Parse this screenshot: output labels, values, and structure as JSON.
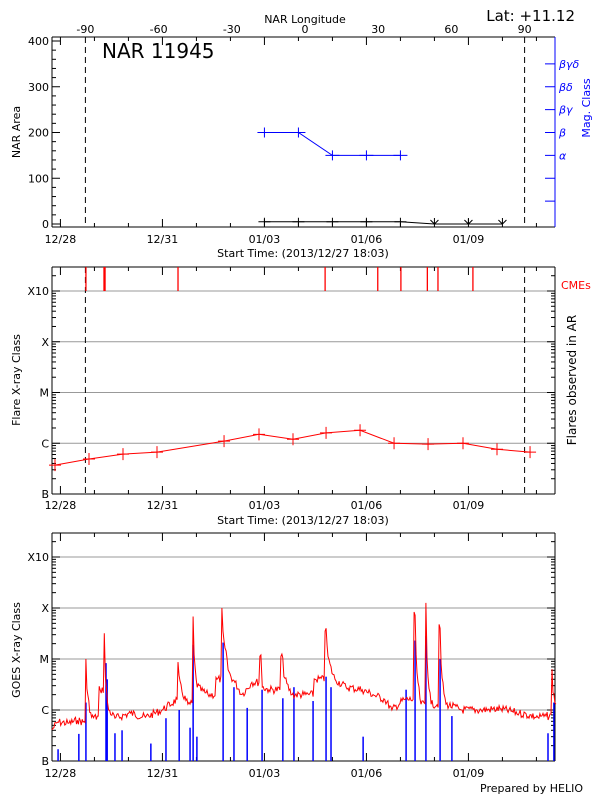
{
  "chart_data": [
    {
      "type": "line",
      "title": "NAR 11945",
      "annotation": "Lat: +11.12",
      "top_axis_label": "NAR Longitude",
      "top_axis_ticks": [
        "-90",
        "-60",
        "-30",
        "0",
        "30",
        "60",
        "90"
      ],
      "top_axis_values": [
        -90,
        -60,
        -30,
        0,
        30,
        60,
        90
      ],
      "xlabel": "Start Time: (2013/12/27 18:03)",
      "x_tick_labels": [
        "12/28",
        "12/31",
        "01/03",
        "01/06",
        "01/09"
      ],
      "x_tick_dates": [
        "2013-12-28",
        "2013-12-31",
        "2014-01-03",
        "2014-01-06",
        "2014-01-09"
      ],
      "ylabel": "NAR Area",
      "ylim": [
        0,
        400
      ],
      "y_tick_labels": [
        "0",
        "100",
        "200",
        "300",
        "400"
      ],
      "y2label": "Mag. Class",
      "y2_tick_labels": [
        "α",
        "β",
        "βγ",
        "βδ",
        "βγδ"
      ],
      "y2_tick_values": [
        150,
        200,
        250,
        300,
        350
      ],
      "limb_longitudes": [
        -90,
        90
      ],
      "series": [
        {
          "color": "#000000",
          "points": [
            [
              "2014-01-03T00:00",
              5
            ],
            [
              "2014-01-04T00:00",
              5
            ],
            [
              "2014-01-05T00:00",
              5
            ],
            [
              "2014-01-06T00:00",
              5
            ],
            [
              "2014-01-07T00:00",
              5
            ],
            [
              "2014-01-08T00:00",
              0
            ],
            [
              "2014-01-09T00:00",
              0
            ],
            [
              "2014-01-10T00:00",
              0
            ]
          ]
        },
        {
          "color": "#0000ff",
          "axis": "Mag. Class",
          "points": [
            [
              "2014-01-03T00:00",
              "β"
            ],
            [
              "2014-01-04T00:00",
              "β"
            ],
            [
              "2014-01-05T00:00",
              "α"
            ],
            [
              "2014-01-06T00:00",
              "α"
            ],
            [
              "2014-01-07T00:00",
              "α"
            ]
          ]
        }
      ]
    },
    {
      "type": "line",
      "xlabel": "Start Time: (2013/12/27 18:03)",
      "x_tick_labels": [
        "12/28",
        "12/31",
        "01/03",
        "01/06",
        "01/09"
      ],
      "ylabel": "Flare X-ray Class",
      "y2label": "Flares observed in AR",
      "yscale": "log",
      "ylim": [
        1e-07,
        0.0029
      ],
      "y_tick_labels": [
        "B",
        "C",
        "M",
        "X",
        "X10"
      ],
      "y_tick_values": [
        1e-07,
        1e-06,
        1e-05,
        0.0001,
        0.001
      ],
      "grid": true,
      "cme_label": "CMEs",
      "cme_color": "#ff0000",
      "cme_times": [
        "2013-12-28T18:00",
        "2013-12-29T06:45",
        "2013-12-29T07:30",
        "2013-12-31T11:00",
        "2014-01-04T18:50",
        "2014-01-06T08:00",
        "2014-01-07T00:20",
        "2014-01-07T19:00",
        "2014-01-08T02:30",
        "2014-01-09T03:10"
      ],
      "series": [
        {
          "color": "#ff0000",
          "points": [
            [
              "2013-12-27T20:10",
              3.7e-07
            ],
            [
              "2013-12-28T20:10",
              4.9e-07
            ],
            [
              "2013-12-29T20:10",
              6.1e-07
            ],
            [
              "2013-12-30T20:10",
              6.7e-07
            ],
            [
              "2014-01-01T19:30",
              1.1e-06
            ],
            [
              "2014-01-02T20:10",
              1.5e-06
            ],
            [
              "2014-01-03T20:10",
              1.2e-06
            ],
            [
              "2014-01-04T19:30",
              1.6e-06
            ],
            [
              "2014-01-05T19:30",
              1.8e-06
            ],
            [
              "2014-01-06T19:30",
              1e-06
            ],
            [
              "2014-01-07T19:30",
              9.6e-07
            ],
            [
              "2014-01-08T20:10",
              1e-06
            ],
            [
              "2014-01-09T20:10",
              7.6e-07
            ],
            [
              "2014-01-10T19:30",
              6.7e-07
            ]
          ]
        }
      ]
    },
    {
      "type": "line",
      "x_tick_labels": [
        "12/28",
        "12/31",
        "01/03",
        "01/06",
        "01/09"
      ],
      "ylabel": "GOES X-ray Class",
      "yscale": "log",
      "ylim": [
        1e-07,
        0.0029
      ],
      "y_tick_labels": [
        "B",
        "C",
        "M",
        "X",
        "X10"
      ],
      "grid": true,
      "footer": "Prepared by HELIO",
      "series": [
        {
          "color": "#ff0000",
          "points": [
            [
              "2013-12-27T18:03",
              4.1e-07
            ],
            [
              "2013-12-27T22:00",
              5.8e-07
            ],
            [
              "2013-12-28T06:00",
              5.5e-07
            ],
            [
              "2013-12-28T12:00",
              6.3e-07
            ],
            [
              "2013-12-28T16:00",
              5.8e-07
            ],
            [
              "2013-12-28T18:00",
              1e-05
            ],
            [
              "2013-12-28T22:00",
              7.2e-07
            ],
            [
              "2013-12-29T04:00",
              2.5e-06
            ],
            [
              "2013-12-29T07:00",
              3.2e-05
            ],
            [
              "2013-12-29T10:00",
              1e-06
            ],
            [
              "2013-12-29T14:30",
              6.9e-07
            ],
            [
              "2013-12-30T01:30",
              8.7e-07
            ],
            [
              "2013-12-30T12:00",
              7.2e-07
            ],
            [
              "2013-12-30T23:50",
              1e-06
            ],
            [
              "2013-12-31T10:20",
              1.6e-06
            ],
            [
              "2013-12-31T11:00",
              8.7e-06
            ],
            [
              "2013-12-31T18:00",
              1.3e-06
            ],
            [
              "2013-12-31T21:40",
              6.8e-05
            ],
            [
              "2013-12-31T23:50",
              4e-06
            ],
            [
              "2014-01-01T08:10",
              2e-06
            ],
            [
              "2014-01-01T14:30",
              4e-06
            ],
            [
              "2014-01-01T18:00",
              0.0001
            ],
            [
              "2014-01-01T21:40",
              1e-05
            ],
            [
              "2014-01-02T03:10",
              3.5e-06
            ],
            [
              "2014-01-02T08:10",
              2e-06
            ],
            [
              "2014-01-02T15:10",
              3.5e-06
            ],
            [
              "2014-01-02T21:30",
              1.2e-05
            ],
            [
              "2014-01-02T22:30",
              2.8e-06
            ],
            [
              "2014-01-03T03:10",
              2.5e-06
            ],
            [
              "2014-01-03T13:00",
              1.05e-05
            ],
            [
              "2014-01-03T19:30",
              2e-06
            ],
            [
              "2014-01-04T03:50",
              2e-06
            ],
            [
              "2014-01-04T11:50",
              4e-06
            ],
            [
              "2014-01-04T19:30",
              4e-05
            ],
            [
              "2014-01-05T01:50",
              4e-06
            ],
            [
              "2014-01-05T09:40",
              2.8e-06
            ],
            [
              "2014-01-05T21:00",
              2.5e-06
            ],
            [
              "2014-01-06T04:40",
              2e-06
            ],
            [
              "2014-01-06T13:00",
              1.6e-06
            ],
            [
              "2014-01-06T18:00",
              1e-06
            ],
            [
              "2014-01-07T02:30",
              1.6e-06
            ],
            [
              "2014-01-07T10:20",
              7.2e-05
            ],
            [
              "2014-01-07T14:30",
              1.3e-06
            ],
            [
              "2014-01-07T18:00",
              0.000126
            ],
            [
              "2014-01-07T21:40",
              1.3e-06
            ],
            [
              "2014-01-08T04:00",
              4e-05
            ],
            [
              "2014-01-08T08:10",
              1.3e-06
            ],
            [
              "2014-01-08T19:30",
              1e-06
            ],
            [
              "2014-01-09T09:00",
              1e-06
            ],
            [
              "2014-01-09T22:20",
              1.05e-06
            ],
            [
              "2014-01-10T11:50",
              8.7e-07
            ],
            [
              "2014-01-11T01:00",
              7.2e-07
            ],
            [
              "2014-01-11T06:50",
              7.6e-07
            ],
            [
              "2014-01-11T11:00",
              6.3e-06
            ],
            [
              "2014-01-11T13:40",
              1.3e-06
            ]
          ]
        },
        {
          "color": "#0000ff",
          "style": "spikes",
          "points": [
            [
              "2013-12-27T22:20",
              1.7e-07
            ],
            [
              "2013-12-28T13:00",
              3.4e-07
            ],
            [
              "2013-12-28T18:00",
              1.4e-06
            ],
            [
              "2013-12-29T08:10",
              8.3e-06
            ],
            [
              "2013-12-29T09:00",
              4e-06
            ],
            [
              "2013-12-29T14:30",
              3.5e-07
            ],
            [
              "2013-12-29T19:30",
              4e-07
            ],
            [
              "2013-12-30T15:50",
              2.2e-07
            ],
            [
              "2013-12-31T02:30",
              6.9e-07
            ],
            [
              "2013-12-31T11:50",
              1e-06
            ],
            [
              "2013-12-31T19:30",
              4.5e-07
            ],
            [
              "2013-12-31T21:40",
              1.9e-05
            ],
            [
              "2014-01-01T00:20",
              3e-07
            ],
            [
              "2014-01-01T18:50",
              2.1e-05
            ],
            [
              "2014-01-02T02:30",
              2.8e-06
            ],
            [
              "2014-01-02T11:50",
              1.1e-06
            ],
            [
              "2014-01-02T22:20",
              2.5e-06
            ],
            [
              "2014-01-03T13:00",
              1.7e-06
            ],
            [
              "2014-01-03T20:50",
              2.8e-06
            ],
            [
              "2014-01-04T10:20",
              1.5e-06
            ],
            [
              "2014-01-04T19:30",
              4.5e-06
            ],
            [
              "2014-01-04T23:00",
              2.8e-06
            ],
            [
              "2014-01-05T21:40",
              3e-07
            ],
            [
              "2014-01-07T04:00",
              2.5e-06
            ],
            [
              "2014-01-07T10:20",
              2.3e-05
            ],
            [
              "2014-01-07T18:00",
              2.8e-05
            ],
            [
              "2014-01-08T04:00",
              1e-05
            ],
            [
              "2014-01-08T12:20",
              7.6e-07
            ],
            [
              "2014-01-11T08:10",
              3.5e-07
            ],
            [
              "2014-01-11T12:20",
              1.4e-06
            ]
          ]
        }
      ]
    }
  ]
}
